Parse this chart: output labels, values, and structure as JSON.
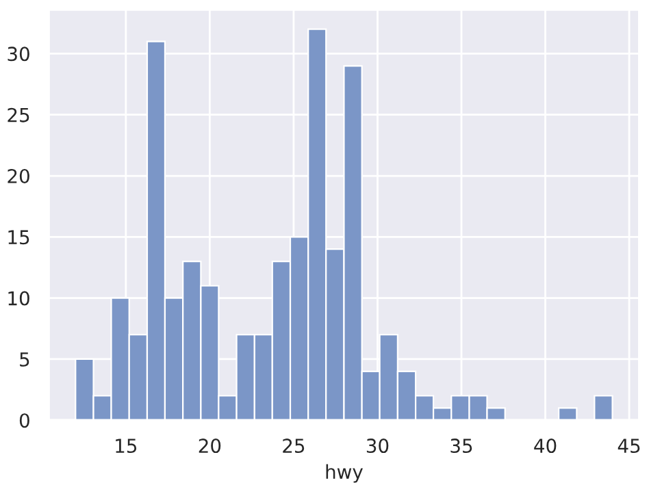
{
  "chart_data": {
    "type": "histogram",
    "xlabel": "hwy",
    "bins": [
      12,
      13.07,
      14.13,
      15.2,
      16.27,
      17.33,
      18.4,
      19.47,
      20.53,
      21.6,
      22.67,
      23.73,
      24.8,
      25.87,
      26.93,
      28,
      29.07,
      30.13,
      31.2,
      32.27,
      33.33,
      34.4,
      35.47,
      36.53,
      37.6,
      38.67,
      39.73,
      40.8,
      41.87,
      42.93,
      44
    ],
    "values": [
      5,
      2,
      10,
      7,
      31,
      10,
      13,
      11,
      2,
      7,
      7,
      13,
      15,
      32,
      14,
      29,
      4,
      7,
      4,
      2,
      1,
      2,
      2,
      1,
      0,
      0,
      0,
      1,
      0,
      2
    ],
    "color": "#7b96c7",
    "xlim": [
      10.4,
      45.6
    ],
    "xticks": [
      15,
      20,
      25,
      30,
      35,
      40,
      45
    ],
    "ylim": [
      0,
      33.6
    ],
    "yticks": [
      0,
      5,
      10,
      15,
      20,
      25,
      30
    ],
    "grid": true
  }
}
